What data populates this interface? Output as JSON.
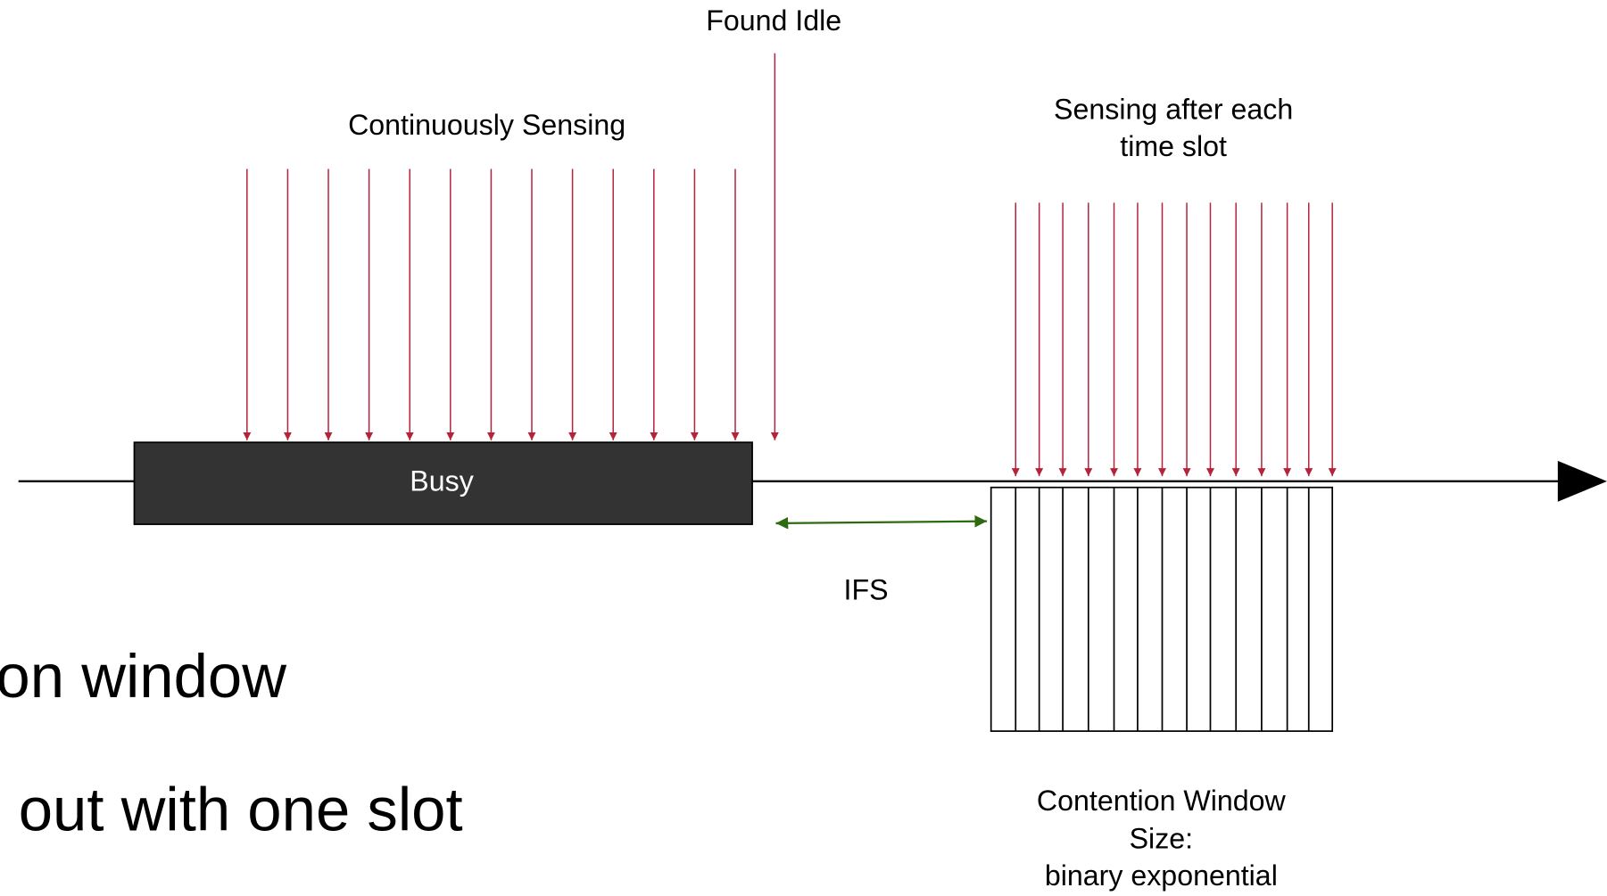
{
  "labels": {
    "found_idle": "Found Idle",
    "continuous": "Continuously Sensing",
    "sensing_slot": [
      "Sensing after each",
      "time slot"
    ],
    "busy": "Busy",
    "ifs": "IFS",
    "contention": [
      "Contention Window",
      "Size:",
      "binary exponential"
    ],
    "slide_lines": [
      "on window",
      "out with one slot"
    ]
  }
}
